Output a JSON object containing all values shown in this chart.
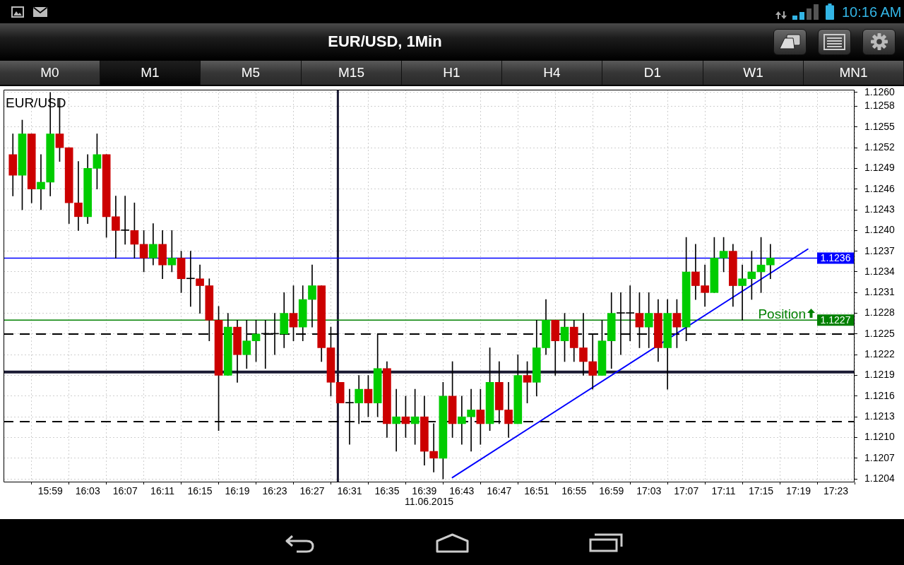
{
  "chart_data": {
    "type": "candlestick",
    "title": "EUR/USD, 1Min",
    "subtitle": "EUR/USD",
    "xlabel": "11.06.2015",
    "annotations": [
      "M0",
      "M1",
      "M5",
      "M15",
      "H1",
      "H4",
      "D1",
      "W1",
      "MN1",
      "10:16 AM",
      {
        "text": "1.1236",
        "y": 1.1236
      },
      {
        "text": "1.1227",
        "y": 1.1227
      }
    ],
    "x": [
      "2015-06-11T15:55",
      "2015-06-11T15:56",
      "2015-06-11T15:57",
      "2015-06-11T15:58",
      "2015-06-11T15:59",
      "2015-06-11T16:00",
      "2015-06-11T16:01",
      "2015-06-11T16:02",
      "2015-06-11T16:03",
      "2015-06-11T16:04",
      "2015-06-11T16:05",
      "2015-06-11T16:06",
      "2015-06-11T16:07",
      "2015-06-11T16:08",
      "2015-06-11T16:09",
      "2015-06-11T16:10",
      "2015-06-11T16:11",
      "2015-06-11T16:12",
      "2015-06-11T16:13",
      "2015-06-11T16:14",
      "2015-06-11T16:15",
      "2015-06-11T16:16",
      "2015-06-11T16:17",
      "2015-06-11T16:18",
      "2015-06-11T16:19",
      "2015-06-11T16:20",
      "2015-06-11T16:21",
      "2015-06-11T16:22",
      "2015-06-11T16:23",
      "2015-06-11T16:24",
      "2015-06-11T16:25",
      "2015-06-11T16:26",
      "2015-06-11T16:27",
      "2015-06-11T16:28",
      "2015-06-11T16:29",
      "2015-06-11T16:30",
      "2015-06-11T16:31",
      "2015-06-11T16:32",
      "2015-06-11T16:33",
      "2015-06-11T16:34",
      "2015-06-11T16:35",
      "2015-06-11T16:36",
      "2015-06-11T16:37",
      "2015-06-11T16:38",
      "2015-06-11T16:39",
      "2015-06-11T16:40",
      "2015-06-11T16:41",
      "2015-06-11T16:42",
      "2015-06-11T16:43",
      "2015-06-11T16:44",
      "2015-06-11T16:45",
      "2015-06-11T16:46",
      "2015-06-11T16:47",
      "2015-06-11T16:48",
      "2015-06-11T16:49",
      "2015-06-11T16:50",
      "2015-06-11T16:51",
      "2015-06-11T16:52",
      "2015-06-11T16:53",
      "2015-06-11T16:54",
      "2015-06-11T16:55",
      "2015-06-11T16:56",
      "2015-06-11T16:57",
      "2015-06-11T16:58",
      "2015-06-11T16:59",
      "2015-06-11T17:00",
      "2015-06-11T17:01",
      "2015-06-11T17:02",
      "2015-06-11T17:03",
      "2015-06-11T17:04",
      "2015-06-11T17:05",
      "2015-06-11T17:06",
      "2015-06-11T17:07",
      "2015-06-11T17:08",
      "2015-06-11T17:09",
      "2015-06-11T17:10",
      "2015-06-11T17:11",
      "2015-06-11T17:12",
      "2015-06-11T17:13",
      "2015-06-11T17:14",
      "2015-06-11T17:15",
      "2015-06-11T17:16"
    ],
    "ohlc": [
      [
        1.1251,
        1.1254,
        1.1245,
        1.1248
      ],
      [
        1.1248,
        1.1256,
        1.1243,
        1.1254
      ],
      [
        1.1254,
        1.1254,
        1.1244,
        1.1246
      ],
      [
        1.1246,
        1.1251,
        1.1243,
        1.1247
      ],
      [
        1.1247,
        1.126,
        1.1245,
        1.1254
      ],
      [
        1.1254,
        1.1259,
        1.125,
        1.1252
      ],
      [
        1.1252,
        1.1252,
        1.1241,
        1.1244
      ],
      [
        1.1244,
        1.125,
        1.124,
        1.1242
      ],
      [
        1.1242,
        1.1251,
        1.1241,
        1.1249
      ],
      [
        1.1249,
        1.1254,
        1.1246,
        1.1251
      ],
      [
        1.1251,
        1.1251,
        1.1239,
        1.1242
      ],
      [
        1.1242,
        1.1245,
        1.1236,
        1.124
      ],
      [
        1.124,
        1.1245,
        1.1238,
        1.124
      ],
      [
        1.124,
        1.1244,
        1.1236,
        1.1238
      ],
      [
        1.1238,
        1.124,
        1.1234,
        1.1236
      ],
      [
        1.1236,
        1.1241,
        1.1235,
        1.1238
      ],
      [
        1.1238,
        1.124,
        1.1233,
        1.1235
      ],
      [
        1.1235,
        1.124,
        1.1234,
        1.1236
      ],
      [
        1.1236,
        1.1237,
        1.1231,
        1.1233
      ],
      [
        1.1233,
        1.1237,
        1.1229,
        1.1233
      ],
      [
        1.1233,
        1.1235,
        1.1228,
        1.1232
      ],
      [
        1.1232,
        1.1233,
        1.1224,
        1.1227
      ],
      [
        1.1227,
        1.1229,
        1.1211,
        1.1219
      ],
      [
        1.1219,
        1.1228,
        1.1219,
        1.1226
      ],
      [
        1.1226,
        1.1227,
        1.1218,
        1.1222
      ],
      [
        1.1222,
        1.1227,
        1.122,
        1.1224
      ],
      [
        1.1224,
        1.1227,
        1.1221,
        1.1225
      ],
      [
        1.1225,
        1.1227,
        1.122,
        1.1225
      ],
      [
        1.1225,
        1.1228,
        1.1222,
        1.1225
      ],
      [
        1.1225,
        1.1231,
        1.1223,
        1.1228
      ],
      [
        1.1228,
        1.1232,
        1.1224,
        1.1226
      ],
      [
        1.1226,
        1.1232,
        1.1224,
        1.123
      ],
      [
        1.123,
        1.1235,
        1.1226,
        1.1232
      ],
      [
        1.1232,
        1.1232,
        1.1221,
        1.1223
      ],
      [
        1.1223,
        1.1226,
        1.1216,
        1.1218
      ],
      [
        1.1218,
        1.1218,
        1.1215,
        1.1215
      ],
      [
        1.1215,
        1.1217,
        1.1209,
        1.1215
      ],
      [
        1.1215,
        1.1219,
        1.1212,
        1.1217
      ],
      [
        1.1217,
        1.1219,
        1.1213,
        1.1215
      ],
      [
        1.1215,
        1.1225,
        1.1213,
        1.122
      ],
      [
        1.122,
        1.1221,
        1.121,
        1.1212
      ],
      [
        1.1212,
        1.1217,
        1.1208,
        1.1213
      ],
      [
        1.1213,
        1.1216,
        1.121,
        1.1212
      ],
      [
        1.1212,
        1.1217,
        1.1209,
        1.1213
      ],
      [
        1.1213,
        1.1216,
        1.1206,
        1.1208
      ],
      [
        1.1208,
        1.1212,
        1.1205,
        1.1207
      ],
      [
        1.1207,
        1.1218,
        1.1204,
        1.1216
      ],
      [
        1.1216,
        1.1221,
        1.121,
        1.1212
      ],
      [
        1.1212,
        1.1216,
        1.1209,
        1.1213
      ],
      [
        1.1213,
        1.1217,
        1.1208,
        1.1214
      ],
      [
        1.1214,
        1.1217,
        1.1209,
        1.1212
      ],
      [
        1.1212,
        1.1223,
        1.1211,
        1.1218
      ],
      [
        1.1218,
        1.1221,
        1.1212,
        1.1214
      ],
      [
        1.1214,
        1.1218,
        1.121,
        1.1212
      ],
      [
        1.1212,
        1.1222,
        1.1212,
        1.1219
      ],
      [
        1.1219,
        1.1221,
        1.1215,
        1.1218
      ],
      [
        1.1218,
        1.1227,
        1.1216,
        1.1223
      ],
      [
        1.1223,
        1.123,
        1.1222,
        1.1227
      ],
      [
        1.1227,
        1.1227,
        1.1219,
        1.1224
      ],
      [
        1.1224,
        1.1228,
        1.1221,
        1.1226
      ],
      [
        1.1226,
        1.1227,
        1.1221,
        1.1223
      ],
      [
        1.1223,
        1.1228,
        1.1219,
        1.1221
      ],
      [
        1.1221,
        1.1225,
        1.1217,
        1.1219
      ],
      [
        1.1219,
        1.1227,
        1.1219,
        1.1224
      ],
      [
        1.1224,
        1.1231,
        1.122,
        1.1228
      ],
      [
        1.1228,
        1.1231,
        1.1222,
        1.1228
      ],
      [
        1.1228,
        1.1232,
        1.1224,
        1.1228
      ],
      [
        1.1228,
        1.1231,
        1.1223,
        1.1226
      ],
      [
        1.1226,
        1.1231,
        1.1223,
        1.1228
      ],
      [
        1.1228,
        1.123,
        1.1221,
        1.1223
      ],
      [
        1.1223,
        1.123,
        1.1217,
        1.1228
      ],
      [
        1.1228,
        1.123,
        1.1223,
        1.1226
      ],
      [
        1.1226,
        1.1239,
        1.1224,
        1.1234
      ],
      [
        1.1234,
        1.1238,
        1.123,
        1.1232
      ],
      [
        1.1232,
        1.1235,
        1.1229,
        1.1231
      ],
      [
        1.1231,
        1.1239,
        1.1231,
        1.1236
      ],
      [
        1.1236,
        1.1239,
        1.1234,
        1.1237
      ],
      [
        1.1237,
        1.1238,
        1.1229,
        1.1232
      ],
      [
        1.1232,
        1.1235,
        1.1227,
        1.1233
      ],
      [
        1.1233,
        1.1237,
        1.123,
        1.1234
      ],
      [
        1.1234,
        1.1239,
        1.1231,
        1.1235
      ],
      [
        1.1235,
        1.1238,
        1.1233,
        1.1236
      ]
    ],
    "colors": [
      "#cc0000",
      "#00cc00",
      "#cc0000",
      "#00cc00",
      "#00cc00",
      "#cc0000",
      "#cc0000",
      "#cc0000",
      "#00cc00",
      "#00cc00",
      "#cc0000",
      "#cc0000",
      "#000000",
      "#cc0000",
      "#cc0000",
      "#00cc00",
      "#cc0000",
      "#00cc00",
      "#cc0000",
      "#000000",
      "#cc0000",
      "#cc0000",
      "#cc0000",
      "#00cc00",
      "#cc0000",
      "#00cc00",
      "#00cc00",
      "#000000",
      "#000000",
      "#00cc00",
      "#cc0000",
      "#00cc00",
      "#00cc00",
      "#cc0000",
      "#cc0000",
      "#cc0000",
      "#000000",
      "#00cc00",
      "#cc0000",
      "#00cc00",
      "#cc0000",
      "#00cc00",
      "#cc0000",
      "#00cc00",
      "#cc0000",
      "#cc0000",
      "#00cc00",
      "#cc0000",
      "#00cc00",
      "#00cc00",
      "#cc0000",
      "#00cc00",
      "#cc0000",
      "#cc0000",
      "#00cc00",
      "#cc0000",
      "#00cc00",
      "#00cc00",
      "#cc0000",
      "#00cc00",
      "#cc0000",
      "#cc0000",
      "#cc0000",
      "#00cc00",
      "#00cc00",
      "#000000",
      "#000000",
      "#cc0000",
      "#00cc00",
      "#cc0000",
      "#00cc00",
      "#cc0000",
      "#00cc00",
      "#cc0000",
      "#cc0000",
      "#00cc00",
      "#00cc00",
      "#cc0000",
      "#00cc00",
      "#00cc00",
      "#00cc00",
      "#00cc00"
    ],
    "series": [
      {
        "type": "line",
        "color": "#0000ff",
        "x": [
          "2015-06-11T16:42",
          "2015-06-11T17:20"
        ],
        "values": [
          1.12042,
          1.12373
        ]
      }
    ],
    "ref_lines": [
      {
        "axis": "x",
        "value": "2015-06-11T16:29:45",
        "color": "#1a1a33"
      },
      {
        "axis": "y",
        "value": 1.12195,
        "color": "#1a1a33"
      },
      {
        "axis": "y",
        "value": 1.1225,
        "line_style": "dashed"
      },
      {
        "axis": "y",
        "value": 1.12123,
        "line_style": "dashed"
      },
      {
        "axis": "y",
        "value": 1.1236,
        "color": "#0000ff"
      },
      {
        "axis": "y",
        "value": 1.1227,
        "label": "Position",
        "color": "#008000"
      }
    ],
    "xlim": [
      "2015-06-11T15:54",
      "2015-06-11T17:25"
    ],
    "xticks": [
      {
        "value": "2015-06-11T15:59",
        "label": "15:59"
      },
      {
        "value": "2015-06-11T16:03",
        "label": "16:03"
      },
      {
        "value": "2015-06-11T16:07",
        "label": "16:07"
      },
      {
        "value": "2015-06-11T16:11",
        "label": "16:11"
      },
      {
        "value": "2015-06-11T16:15",
        "label": "16:15"
      },
      {
        "value": "2015-06-11T16:19",
        "label": "16:19"
      },
      {
        "value": "2015-06-11T16:23",
        "label": "16:23"
      },
      {
        "value": "2015-06-11T16:27",
        "label": "16:27"
      },
      {
        "value": "2015-06-11T16:31",
        "label": "16:31"
      },
      {
        "value": "2015-06-11T16:35",
        "label": "16:35"
      },
      {
        "value": "2015-06-11T16:39",
        "label": "16:39"
      },
      {
        "value": "2015-06-11T16:43",
        "label": "16:43"
      },
      {
        "value": "2015-06-11T16:47",
        "label": "16:47"
      },
      {
        "value": "2015-06-11T16:51",
        "label": "16:51"
      },
      {
        "value": "2015-06-11T16:55",
        "label": "16:55"
      },
      {
        "value": "2015-06-11T16:59",
        "label": "16:59"
      },
      {
        "value": "2015-06-11T17:03",
        "label": "17:03"
      },
      {
        "value": "2015-06-11T17:07",
        "label": "17:07"
      },
      {
        "value": "2015-06-11T17:11",
        "label": "17:11"
      },
      {
        "value": "2015-06-11T17:15",
        "label": "17:15"
      },
      {
        "value": "2015-06-11T17:19",
        "label": "17:19"
      },
      {
        "value": "2015-06-11T17:23",
        "label": "17:23"
      }
    ],
    "ylim": [
      1.12035,
      1.12604
    ],
    "yticks": [
      1.1204,
      1.1207,
      {
        "value": 1.121,
        "label": "1.1210"
      },
      1.1213,
      1.1216,
      1.1219,
      1.1222,
      1.1225,
      1.1228,
      1.1231,
      1.1234,
      1.1237,
      {
        "value": 1.124,
        "label": "1.1240"
      },
      1.1243,
      1.1246,
      1.1249,
      1.1252,
      1.1255,
      1.1258,
      {
        "value": 1.126,
        "label": "1.1260"
      }
    ],
    "grid": true
  }
}
